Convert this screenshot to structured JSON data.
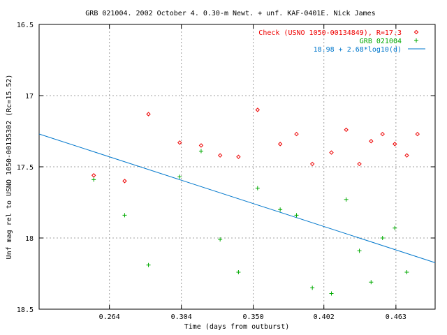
{
  "chart_data": {
    "type": "scatter",
    "title": "GRB 021004. 2002 October 4. 0.30-m Newt. + unf. KAF-0401E. Nick James",
    "xlabel": "Time (days from outburst)",
    "ylabel": "Unf mag rel to USNO 1050-00135302 (Rc=15.52)",
    "x_scale": "log",
    "xlim": [
      0.23,
      0.5
    ],
    "ylim": [
      18.5,
      16.5
    ],
    "y_inverted": true,
    "x_ticks": [
      {
        "value": 0.264,
        "label": "0.264"
      },
      {
        "value": 0.304,
        "label": "0.304"
      },
      {
        "value": 0.35,
        "label": "0.350"
      },
      {
        "value": 0.402,
        "label": "0.402"
      },
      {
        "value": 0.463,
        "label": "0.463"
      }
    ],
    "y_ticks": [
      {
        "value": 16.5,
        "label": "16.5"
      },
      {
        "value": 17.0,
        "label": "17"
      },
      {
        "value": 17.5,
        "label": "17.5"
      },
      {
        "value": 18.0,
        "label": "18"
      },
      {
        "value": 18.5,
        "label": "18.5"
      }
    ],
    "grid": true,
    "legend_position": "top-right",
    "series": [
      {
        "name": "Check (USNO 1050-00134849), R=17.3",
        "color": "#ee0000",
        "marker": "diamond",
        "points": [
          {
            "x": 0.256,
            "y": 17.56
          },
          {
            "x": 0.272,
            "y": 17.6
          },
          {
            "x": 0.285,
            "y": 17.13
          },
          {
            "x": 0.303,
            "y": 17.33
          },
          {
            "x": 0.316,
            "y": 17.35
          },
          {
            "x": 0.328,
            "y": 17.42
          },
          {
            "x": 0.34,
            "y": 17.43
          },
          {
            "x": 0.353,
            "y": 17.1
          },
          {
            "x": 0.369,
            "y": 17.34
          },
          {
            "x": 0.381,
            "y": 17.27
          },
          {
            "x": 0.393,
            "y": 17.48
          },
          {
            "x": 0.408,
            "y": 17.4
          },
          {
            "x": 0.42,
            "y": 17.24
          },
          {
            "x": 0.431,
            "y": 17.48
          },
          {
            "x": 0.441,
            "y": 17.32
          },
          {
            "x": 0.451,
            "y": 17.27
          },
          {
            "x": 0.462,
            "y": 17.34
          },
          {
            "x": 0.473,
            "y": 17.42
          },
          {
            "x": 0.483,
            "y": 17.27
          }
        ]
      },
      {
        "name": "GRB 021004",
        "color": "#00aa00",
        "marker": "plus",
        "points": [
          {
            "x": 0.256,
            "y": 17.59
          },
          {
            "x": 0.272,
            "y": 17.84
          },
          {
            "x": 0.285,
            "y": 18.19
          },
          {
            "x": 0.303,
            "y": 17.57
          },
          {
            "x": 0.316,
            "y": 17.39
          },
          {
            "x": 0.328,
            "y": 18.01
          },
          {
            "x": 0.34,
            "y": 18.24
          },
          {
            "x": 0.353,
            "y": 17.65
          },
          {
            "x": 0.369,
            "y": 17.8
          },
          {
            "x": 0.381,
            "y": 17.84
          },
          {
            "x": 0.393,
            "y": 18.35
          },
          {
            "x": 0.408,
            "y": 18.39
          },
          {
            "x": 0.42,
            "y": 17.73
          },
          {
            "x": 0.431,
            "y": 18.09
          },
          {
            "x": 0.441,
            "y": 18.31
          },
          {
            "x": 0.451,
            "y": 18.0
          },
          {
            "x": 0.462,
            "y": 17.93
          },
          {
            "x": 0.473,
            "y": 18.24
          }
        ]
      },
      {
        "name": "18.98 + 2.68*log10(d)",
        "color": "#0077cc",
        "type": "line",
        "fit": {
          "intercept": 18.98,
          "slope": 2.68
        }
      }
    ]
  }
}
